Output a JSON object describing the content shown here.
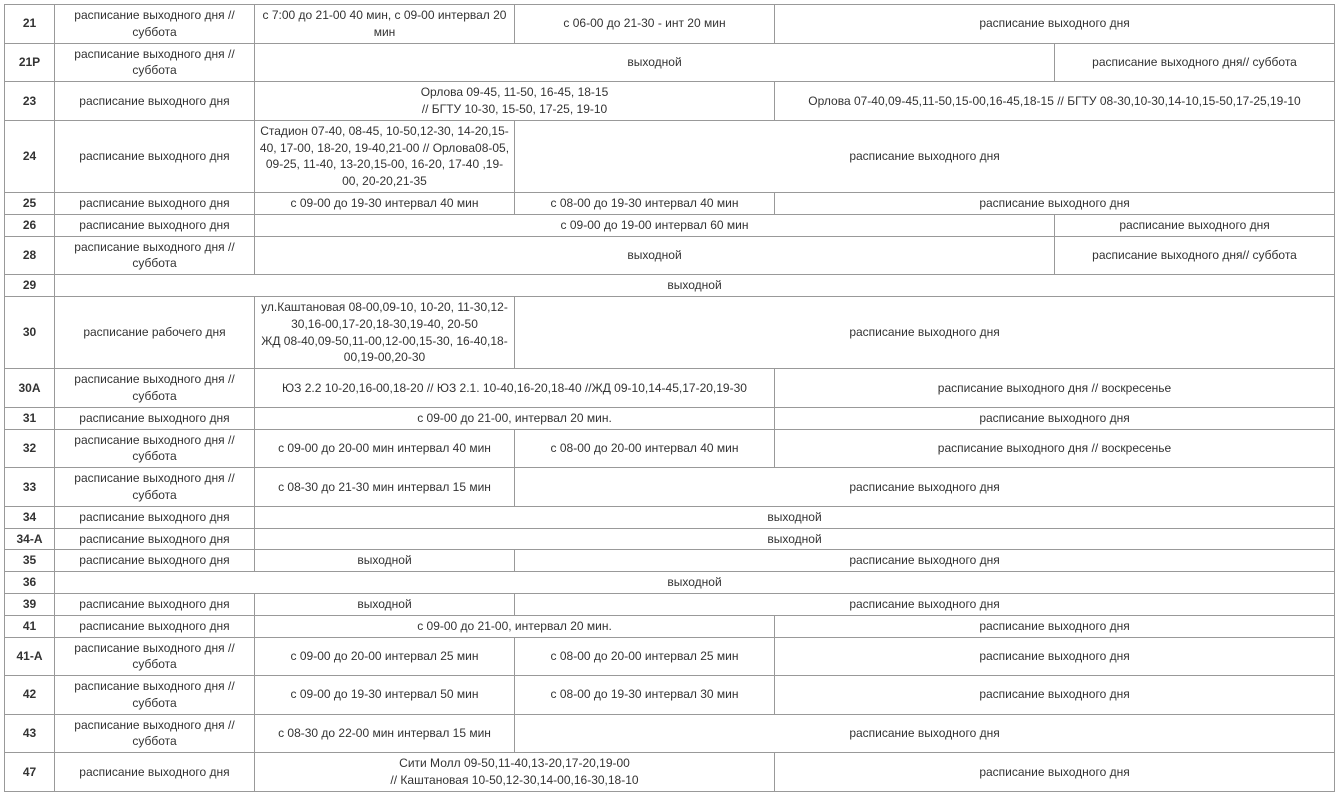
{
  "table": {
    "type": "table",
    "border_color": "#999999",
    "background_color": "#ffffff",
    "text_color": "#333333",
    "font_size": 12,
    "rows": [
      {
        "route": "21",
        "cells": [
          {
            "text": "расписание выходного дня //суббота",
            "colspan": 1
          },
          {
            "text": "с 7:00 до 21-00 40 мин, с 09-00 интервал 20 мин",
            "colspan": 1
          },
          {
            "text": "с 06-00 до 21-30 - инт 20 мин",
            "colspan": 1
          },
          {
            "text": "расписание выходного дня",
            "colspan": 2
          }
        ]
      },
      {
        "route": "21Р",
        "cells": [
          {
            "text": "расписание выходного дня //суббота",
            "colspan": 1
          },
          {
            "text": "выходной",
            "colspan": 3
          },
          {
            "text": "расписание выходного дня// суббота",
            "colspan": 1
          }
        ]
      },
      {
        "route": "23",
        "cells": [
          {
            "text": "расписание выходного дня",
            "colspan": 1
          },
          {
            "text": "Орлова 09-45, 11-50, 16-45, 18-15\n// БГТУ 10-30, 15-50, 17-25, 19-10",
            "colspan": 2
          },
          {
            "text": "Орлова 07-40,09-45,11-50,15-00,16-45,18-15 // БГТУ 08-30,10-30,14-10,15-50,17-25,19-10",
            "colspan": 2
          }
        ]
      },
      {
        "route": "24",
        "cells": [
          {
            "text": "расписание выходного дня",
            "colspan": 1
          },
          {
            "text": "Стадион 07-40, 08-45, 10-50,12-30, 14-20,15-40, 17-00, 18-20, 19-40,21-00 // Орлова08-05, 09-25, 11-40, 13-20,15-00, 16-20, 17-40 ,19-00, 20-20,21-35",
            "colspan": 1
          },
          {
            "text": "расписание выходного дня",
            "colspan": 3
          }
        ]
      },
      {
        "route": "25",
        "cells": [
          {
            "text": "расписание выходного дня",
            "colspan": 1
          },
          {
            "text": "с 09-00 до 19-30 интервал 40 мин",
            "colspan": 1
          },
          {
            "text": "с 08-00 до 19-30 интервал 40 мин",
            "colspan": 1
          },
          {
            "text": "расписание выходного дня",
            "colspan": 2
          }
        ]
      },
      {
        "route": "26",
        "cells": [
          {
            "text": "расписание выходного дня",
            "colspan": 1
          },
          {
            "text": "с 09-00 до 19-00 интервал 60 мин",
            "colspan": 3
          },
          {
            "text": "расписание выходного дня",
            "colspan": 1
          }
        ]
      },
      {
        "route": "28",
        "cells": [
          {
            "text": "расписание выходного дня //суббота",
            "colspan": 1
          },
          {
            "text": "выходной",
            "colspan": 3
          },
          {
            "text": "расписание выходного дня// суббота",
            "colspan": 1
          }
        ]
      },
      {
        "route": "29",
        "cells": [
          {
            "text": "выходной",
            "colspan": 5
          }
        ]
      },
      {
        "route": "30",
        "cells": [
          {
            "text": "расписание рабочего дня",
            "colspan": 1
          },
          {
            "text": "ул.Каштановая 08-00,09-10, 10-20, 11-30,12-30,16-00,17-20,18-30,19-40, 20-50\nЖД 08-40,09-50,11-00,12-00,15-30, 16-40,18-00,19-00,20-30",
            "colspan": 1
          },
          {
            "text": "расписание выходного дня",
            "colspan": 3
          }
        ]
      },
      {
        "route": "30А",
        "cells": [
          {
            "text": "расписание выходного дня //суббота",
            "colspan": 1
          },
          {
            "text": "ЮЗ 2.2 10-20,16-00,18-20 // ЮЗ 2.1. 10-40,16-20,18-40 //ЖД 09-10,14-45,17-20,19-30",
            "colspan": 2
          },
          {
            "text": "расписание выходного дня // воскресенье",
            "colspan": 2
          }
        ]
      },
      {
        "route": "31",
        "cells": [
          {
            "text": "расписание выходного дня",
            "colspan": 1
          },
          {
            "text": "с 09-00 до 21-00, интервал 20 мин.",
            "colspan": 2
          },
          {
            "text": "расписание выходного дня",
            "colspan": 2
          }
        ]
      },
      {
        "route": "32",
        "cells": [
          {
            "text": "расписание выходного дня //суббота",
            "colspan": 1
          },
          {
            "text": "с 09-00 до 20-00 мин интервал 40 мин",
            "colspan": 1
          },
          {
            "text": "с 08-00 до 20-00 интервал 40 мин",
            "colspan": 1
          },
          {
            "text": "расписание выходного дня // воскресенье",
            "colspan": 2
          }
        ]
      },
      {
        "route": "33",
        "cells": [
          {
            "text": "расписание выходного дня //суббота",
            "colspan": 1
          },
          {
            "text": "с 08-30 до 21-30 мин интервал 15 мин",
            "colspan": 1
          },
          {
            "text": "расписание выходного дня",
            "colspan": 3
          }
        ]
      },
      {
        "route": "34",
        "cells": [
          {
            "text": "расписание выходного дня",
            "colspan": 1
          },
          {
            "text": "выходной",
            "colspan": 4
          }
        ]
      },
      {
        "route": "34-А",
        "cells": [
          {
            "text": "расписание выходного дня",
            "colspan": 1
          },
          {
            "text": "выходной",
            "colspan": 4
          }
        ]
      },
      {
        "route": "35",
        "cells": [
          {
            "text": "расписание выходного дня",
            "colspan": 1
          },
          {
            "text": "выходной",
            "colspan": 1
          },
          {
            "text": "расписание выходного дня",
            "colspan": 3
          }
        ]
      },
      {
        "route": "36",
        "cells": [
          {
            "text": "выходной",
            "colspan": 5
          }
        ]
      },
      {
        "route": "39",
        "cells": [
          {
            "text": "расписание выходного дня",
            "colspan": 1
          },
          {
            "text": "выходной",
            "colspan": 1
          },
          {
            "text": "расписание выходного дня",
            "colspan": 3
          }
        ]
      },
      {
        "route": "41",
        "cells": [
          {
            "text": "расписание выходного дня",
            "colspan": 1
          },
          {
            "text": "с 09-00 до 21-00, интервал 20 мин.",
            "colspan": 2
          },
          {
            "text": "расписание выходного дня",
            "colspan": 2
          }
        ]
      },
      {
        "route": "41-А",
        "cells": [
          {
            "text": "расписание выходного дня //суббота",
            "colspan": 1
          },
          {
            "text": "с 09-00 до 20-00 интервал 25 мин",
            "colspan": 1
          },
          {
            "text": "с 08-00 до 20-00 интервал 25 мин",
            "colspan": 1
          },
          {
            "text": "расписание выходного дня",
            "colspan": 2
          }
        ]
      },
      {
        "route": "42",
        "cells": [
          {
            "text": "расписание выходного дня //суббота",
            "colspan": 1
          },
          {
            "text": "с 09-00 до 19-30 интервал 50 мин",
            "colspan": 1
          },
          {
            "text": "с 08-00 до 19-30 интервал 30 мин",
            "colspan": 1
          },
          {
            "text": "расписание выходного дня",
            "colspan": 2
          }
        ]
      },
      {
        "route": "43",
        "cells": [
          {
            "text": "расписание выходного дня //суббота",
            "colspan": 1
          },
          {
            "text": "с 08-30 до 22-00 мин интервал 15 мин",
            "colspan": 1
          },
          {
            "text": "расписание выходного дня",
            "colspan": 3
          }
        ]
      },
      {
        "route": "47",
        "cells": [
          {
            "text": "расписание выходного дня",
            "colspan": 1
          },
          {
            "text": "Сити Молл 09-50,11-40,13-20,17-20,19-00\n// Каштановая 10-50,12-30,14-00,16-30,18-10",
            "colspan": 2
          },
          {
            "text": "расписание выходного дня",
            "colspan": 2
          }
        ]
      }
    ]
  }
}
